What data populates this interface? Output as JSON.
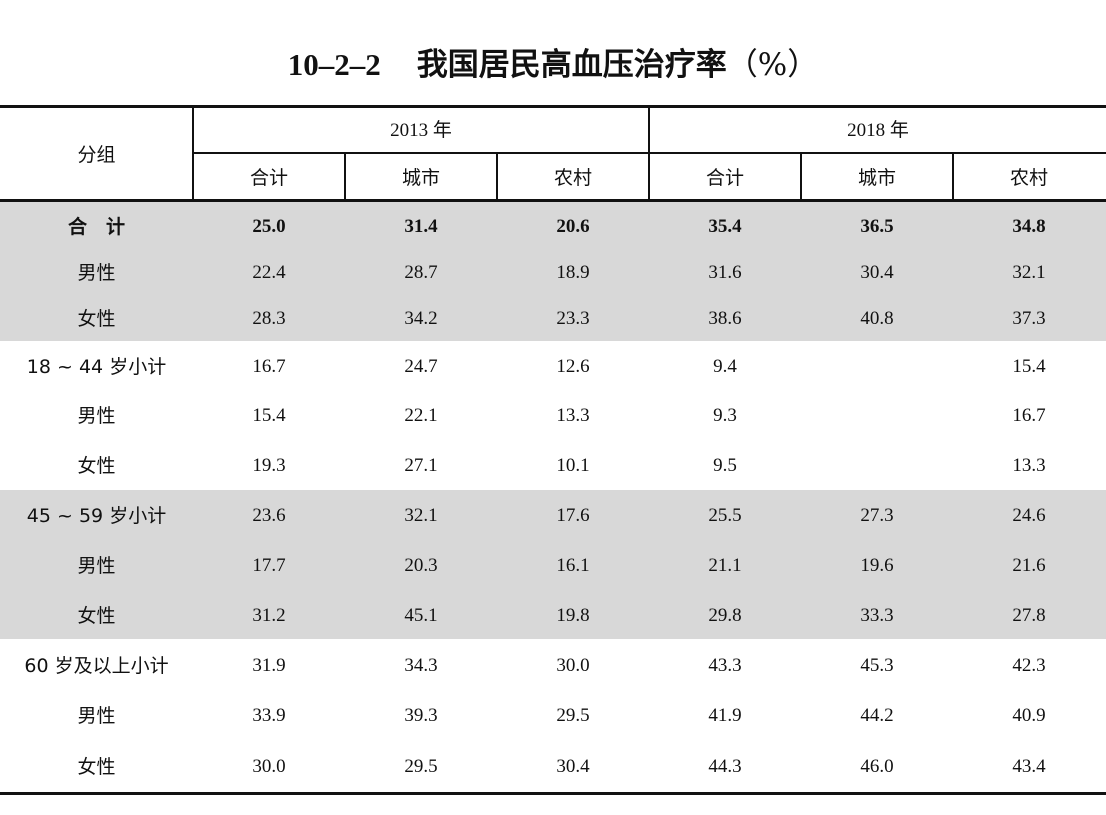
{
  "title": {
    "number": "10–2–2",
    "text": "我国居民高血压治疗率",
    "unit": "（%）"
  },
  "header": {
    "group_label": "分组",
    "years": [
      {
        "label": "2013 年",
        "subcols": [
          "合计",
          "城市",
          "农村"
        ]
      },
      {
        "label": "2018 年",
        "subcols": [
          "合计",
          "城市",
          "农村"
        ]
      }
    ]
  },
  "rows": [
    {
      "label": "合　计",
      "values": [
        "25.0",
        "31.4",
        "20.6",
        "35.4",
        "36.5",
        "34.8"
      ],
      "bold": true
    },
    {
      "label": "男性",
      "values": [
        "22.4",
        "28.7",
        "18.9",
        "31.6",
        "30.4",
        "32.1"
      ]
    },
    {
      "label": "女性",
      "values": [
        "28.3",
        "34.2",
        "23.3",
        "38.6",
        "40.8",
        "37.3"
      ]
    },
    {
      "label": "18 ~ 44 岁小计",
      "values": [
        "16.7",
        "24.7",
        "12.6",
        "9.4",
        "",
        "15.4"
      ]
    },
    {
      "label": "男性",
      "values": [
        "15.4",
        "22.1",
        "13.3",
        "9.3",
        "",
        "16.7"
      ]
    },
    {
      "label": "女性",
      "values": [
        "19.3",
        "27.1",
        "10.1",
        "9.5",
        "",
        "13.3"
      ]
    },
    {
      "label": "45 ~ 59 岁小计",
      "values": [
        "23.6",
        "32.1",
        "17.6",
        "25.5",
        "27.3",
        "24.6"
      ]
    },
    {
      "label": "男性",
      "values": [
        "17.7",
        "20.3",
        "16.1",
        "21.1",
        "19.6",
        "21.6"
      ]
    },
    {
      "label": "女性",
      "values": [
        "31.2",
        "45.1",
        "19.8",
        "29.8",
        "33.3",
        "27.8"
      ]
    },
    {
      "label": "60 岁及以上小计",
      "values": [
        "31.9",
        "34.3",
        "30.0",
        "43.3",
        "45.3",
        "42.3"
      ]
    },
    {
      "label": "男性",
      "values": [
        "33.9",
        "39.3",
        "29.5",
        "41.9",
        "44.2",
        "40.9"
      ]
    },
    {
      "label": "女性",
      "values": [
        "30.0",
        "29.5",
        "30.4",
        "44.3",
        "46.0",
        "43.4"
      ]
    }
  ],
  "colors": {
    "band": "#d8d8d8",
    "rule": "#111111"
  }
}
